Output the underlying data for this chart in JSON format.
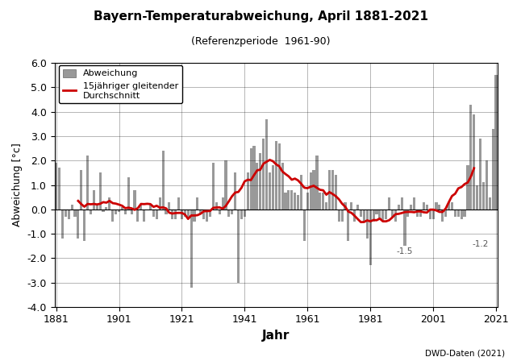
{
  "title": "Bayern-Temperaturabweichung, April 1881-2021",
  "subtitle": "(Referenzperiode  1961-90)",
  "xlabel": "Jahr",
  "ylabel": "Abweichung [°c]",
  "source_text": "DWD-Daten (2021)",
  "ylim": [
    -4.0,
    6.0
  ],
  "xlim": [
    1881,
    2021
  ],
  "yticks": [
    -4.0,
    -3.0,
    -2.0,
    -1.0,
    0.0,
    1.0,
    2.0,
    3.0,
    4.0,
    5.0,
    6.0
  ],
  "xticks": [
    1881,
    1901,
    1921,
    1941,
    1961,
    1981,
    2001,
    2021
  ],
  "bar_color": "#999999",
  "line_color": "#cc0000",
  "annotation_color": "#555555",
  "years": [
    1881,
    1882,
    1883,
    1884,
    1885,
    1886,
    1887,
    1888,
    1889,
    1890,
    1891,
    1892,
    1893,
    1894,
    1895,
    1896,
    1897,
    1898,
    1899,
    1900,
    1901,
    1902,
    1903,
    1904,
    1905,
    1906,
    1907,
    1908,
    1909,
    1910,
    1911,
    1912,
    1913,
    1914,
    1915,
    1916,
    1917,
    1918,
    1919,
    1920,
    1921,
    1922,
    1923,
    1924,
    1925,
    1926,
    1927,
    1928,
    1929,
    1930,
    1931,
    1932,
    1933,
    1934,
    1935,
    1936,
    1937,
    1938,
    1939,
    1940,
    1941,
    1942,
    1943,
    1944,
    1945,
    1946,
    1947,
    1948,
    1949,
    1950,
    1951,
    1952,
    1953,
    1954,
    1955,
    1956,
    1957,
    1958,
    1959,
    1960,
    1961,
    1962,
    1963,
    1964,
    1965,
    1966,
    1967,
    1968,
    1969,
    1970,
    1971,
    1972,
    1973,
    1974,
    1975,
    1976,
    1977,
    1978,
    1979,
    1980,
    1981,
    1982,
    1983,
    1984,
    1985,
    1986,
    1987,
    1988,
    1989,
    1990,
    1991,
    1992,
    1993,
    1994,
    1995,
    1996,
    1997,
    1998,
    1999,
    2000,
    2001,
    2002,
    2003,
    2004,
    2005,
    2006,
    2007,
    2008,
    2009,
    2010,
    2011,
    2012,
    2013,
    2014,
    2015,
    2016,
    2017,
    2018,
    2019,
    2020,
    2021
  ],
  "values": [
    1.9,
    1.7,
    -1.2,
    -0.3,
    -0.4,
    0.2,
    -0.3,
    -1.2,
    1.6,
    -1.3,
    2.2,
    -0.2,
    0.8,
    0.2,
    1.5,
    -0.1,
    0.1,
    0.5,
    -0.5,
    -0.2,
    -0.1,
    0.1,
    -0.2,
    1.3,
    -0.2,
    0.8,
    -0.5,
    0.2,
    -0.5,
    0.0,
    0.2,
    -0.3,
    -0.4,
    0.5,
    2.4,
    -0.2,
    0.3,
    -0.4,
    -0.4,
    0.5,
    -0.4,
    -0.3,
    -0.4,
    -3.2,
    -0.5,
    0.5,
    -0.2,
    -0.4,
    -0.5,
    -0.3,
    1.9,
    0.3,
    -0.2,
    0.5,
    2.0,
    -0.3,
    -0.2,
    1.5,
    -3.0,
    -0.4,
    -0.3,
    1.5,
    2.5,
    2.6,
    1.9,
    2.3,
    2.9,
    3.7,
    1.5,
    1.8,
    2.8,
    2.7,
    1.9,
    0.7,
    0.8,
    0.8,
    0.7,
    0.6,
    1.4,
    -1.3,
    0.7,
    1.5,
    1.6,
    2.2,
    0.7,
    0.7,
    0.3,
    1.6,
    1.6,
    1.4,
    -0.5,
    -0.5,
    0.3,
    -1.3,
    0.3,
    -0.5,
    0.2,
    -0.3,
    -0.5,
    -1.2,
    -2.3,
    -0.5,
    -0.2,
    -0.4,
    -0.5,
    -0.4,
    0.5,
    -0.3,
    -0.5,
    0.2,
    0.5,
    -1.5,
    -0.3,
    0.2,
    0.5,
    -0.3,
    -0.3,
    0.3,
    0.2,
    -0.4,
    -0.4,
    0.3,
    0.2,
    -0.5,
    -0.3,
    0.3,
    0.3,
    -0.3,
    -0.3,
    -0.4,
    -0.3,
    1.8,
    4.3,
    3.9,
    1.0,
    2.9,
    1.1,
    2.0,
    0.5,
    3.3,
    5.5
  ]
}
